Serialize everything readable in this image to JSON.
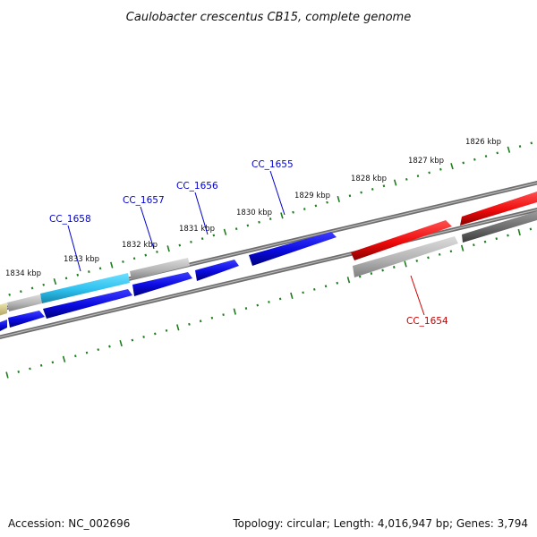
{
  "title": "Caulobacter crescentus CB15, complete genome",
  "footer": {
    "accession": "Accession: NC_002696",
    "summary": "Topology: circular; Length: 4,016,947 bp; Genes: 3,794"
  },
  "ruler": {
    "tick_labels": [
      "1834 kbp",
      "1833 kbp",
      "1832 kbp",
      "1831 kbp",
      "1830 kbp",
      "1829 kbp",
      "1828 kbp",
      "1827 kbp",
      "1826 kbp"
    ]
  },
  "genes": {
    "labels": [
      {
        "id": "cc1658",
        "text": "CC_1658",
        "color": "#0000cc"
      },
      {
        "id": "cc1657",
        "text": "CC_1657",
        "color": "#0000cc"
      },
      {
        "id": "cc1656",
        "text": "CC_1656",
        "color": "#0000cc"
      },
      {
        "id": "cc1655",
        "text": "CC_1655",
        "color": "#0000cc"
      },
      {
        "id": "cc1654",
        "text": "CC_1654",
        "color": "#cc0000"
      }
    ]
  },
  "colors": {
    "blue": "#0a0ae0",
    "cyan": "#2ec0ee",
    "red": "#ee0a0a",
    "light_gray": "#b4b4b4",
    "dark_gray": "#6a6a6a",
    "olive": "#d8cc80",
    "tick_green": "#1e7d1e",
    "backbone": "#7a7a7a"
  }
}
